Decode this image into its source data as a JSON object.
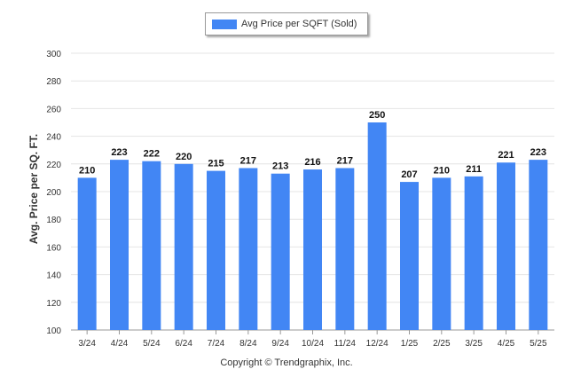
{
  "legend": {
    "label": "Avg Price per SQFT (Sold)"
  },
  "footer": "Copyright © Trendgraphix, Inc.",
  "colors": {
    "bar": "#4286f4",
    "grid": "#e4e4e4",
    "axis": "#999999"
  },
  "chart_data": {
    "type": "bar",
    "title": "",
    "xlabel": "",
    "ylabel": "Avg. Price per SQ. FT.",
    "categories": [
      "3/24",
      "4/24",
      "5/24",
      "6/24",
      "7/24",
      "8/24",
      "9/24",
      "10/24",
      "11/24",
      "12/24",
      "1/25",
      "2/25",
      "3/25",
      "4/25",
      "5/25"
    ],
    "series": [
      {
        "name": "Avg Price per SQFT (Sold)",
        "values": [
          210,
          223,
          222,
          220,
          215,
          217,
          213,
          216,
          217,
          250,
          207,
          210,
          211,
          221,
          223
        ]
      }
    ],
    "ylim": [
      100,
      300
    ],
    "yticks": [
      100,
      120,
      140,
      160,
      180,
      200,
      220,
      240,
      260,
      280,
      300
    ],
    "grid": true,
    "legend_position": "top-center"
  }
}
